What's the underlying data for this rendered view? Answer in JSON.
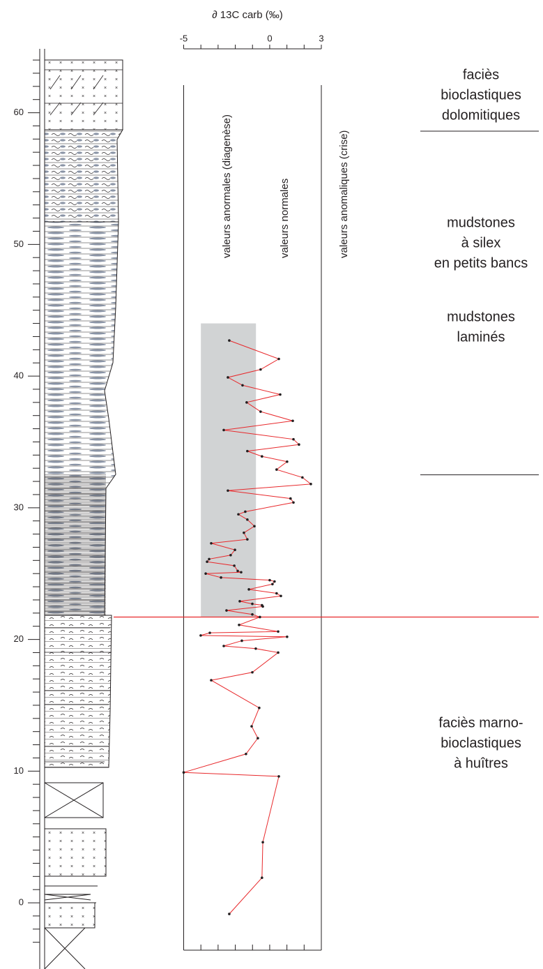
{
  "chart_data": {
    "type": "line",
    "title": "∂ 13C carb (‰)",
    "xlim": [
      -5,
      3
    ],
    "xticks": [
      -5,
      0,
      3
    ],
    "xticks_minor": [
      -5,
      -4,
      -3,
      -2,
      -1,
      0,
      1,
      2,
      3
    ],
    "ylim": [
      -4.5,
      65
    ],
    "yticks": [
      0,
      10,
      20,
      30,
      40,
      50,
      60
    ],
    "yticks_minor": [
      -3,
      -2,
      -1,
      1,
      2,
      3,
      4,
      5,
      6,
      7,
      8,
      9,
      11,
      12,
      13,
      14,
      15,
      16,
      17,
      18,
      19,
      21,
      22,
      23,
      24,
      25,
      26,
      27,
      28,
      29,
      31,
      32,
      33,
      34,
      35,
      36,
      37,
      38,
      39,
      41,
      42,
      43,
      44,
      45,
      46,
      47,
      48,
      49,
      51,
      52,
      53,
      54,
      55,
      56,
      57,
      58,
      59,
      61,
      62,
      63,
      64
    ],
    "series": [
      {
        "color": "#e8282b",
        "x": [
          -2.35,
          0.53,
          -0.53,
          -2.43,
          -1.58,
          0.61,
          -1.34,
          -0.53,
          1.34,
          -2.67,
          1.38,
          1.7,
          -1.3,
          -0.45,
          1.01,
          0.4,
          1.9,
          2.39,
          -2.43,
          1.21,
          1.38,
          -1.42,
          -1.82,
          -1.3,
          -0.89,
          -1.5,
          -1.3,
          -3.4,
          -2.02,
          -2.27,
          -3.52,
          -3.64,
          -2.06,
          -1.86,
          -1.66,
          -3.72,
          -2.83,
          0,
          0.28,
          0.16,
          -1.21,
          0.4,
          0.65,
          -1.74,
          -1.01,
          -0.45,
          -0.4,
          -2.51,
          -1.01,
          -0.57,
          -1.78,
          0.49,
          -3.48,
          -4.01,
          1.01,
          -1.62,
          -2.67,
          -0.81,
          0.49,
          -1.01,
          -3.4,
          -0.61,
          -1.05,
          -0.69,
          -1.38,
          -5,
          0.53,
          -0.4,
          -0.45,
          -2.35
        ],
        "y": [
          42.7,
          41.3,
          40.5,
          39.9,
          39.3,
          38.6,
          38,
          37.3,
          36.6,
          35.9,
          35.2,
          34.8,
          34.3,
          33.9,
          33.5,
          32.9,
          32.3,
          31.8,
          31.3,
          30.7,
          30.4,
          29.7,
          29.5,
          29.1,
          28.6,
          28.1,
          27.6,
          27.3,
          26.8,
          26.4,
          26.1,
          25.9,
          25.6,
          25.2,
          25.1,
          25,
          24.7,
          24.5,
          24.4,
          24.2,
          23.8,
          23.5,
          23.3,
          22.9,
          22.7,
          22.6,
          22.5,
          22.2,
          21.9,
          21.7,
          21.1,
          20.6,
          20.5,
          20.3,
          20.2,
          19.9,
          19.5,
          19.3,
          19,
          17.5,
          16.9,
          14.8,
          13.4,
          12.5,
          11.3,
          9.9,
          9.6,
          4.6,
          1.9,
          -0.85
        ]
      }
    ],
    "band": {
      "color": "#d1d3d4",
      "xlim": [
        -4,
        -0.8
      ],
      "ylim": [
        21.7,
        44
      ]
    },
    "boundary": {
      "color": "#e8282b",
      "y": 21.7
    },
    "annotations": [
      "valeurs anormales (diagenèse)",
      "valeurs normales",
      "valeurs anomaliques (crise)"
    ],
    "facies": [
      [
        "faciès",
        "bioclastiques",
        "dolomitiques"
      ],
      [
        "mudstones",
        "à silex",
        "en petits bancs"
      ],
      [
        "mudstones",
        "laminés"
      ],
      [
        "faciès marno-",
        "bioclastiques",
        "à huîtres"
      ]
    ],
    "facies_boundaries": [
      58.6,
      32.5
    ]
  }
}
